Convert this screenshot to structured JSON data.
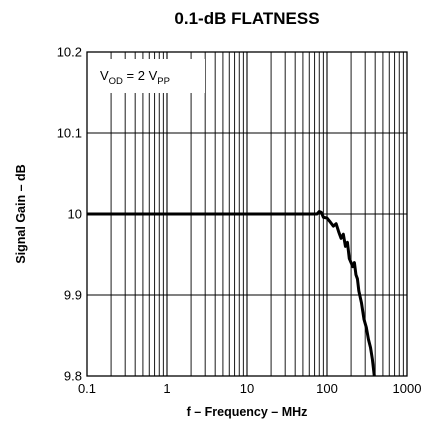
{
  "chart_data": {
    "type": "line",
    "title": "0.1-dB FLATNESS",
    "xlabel": "f – Frequency – MHz",
    "ylabel": "Signal Gain – dB",
    "x_scale": "log",
    "xlim": [
      0.1,
      1000
    ],
    "ylim": [
      9.8,
      10.2
    ],
    "x_ticks": [
      {
        "value": 0.1,
        "label": "0.1"
      },
      {
        "value": 1,
        "label": "1"
      },
      {
        "value": 10,
        "label": "10"
      },
      {
        "value": 100,
        "label": "100"
      },
      {
        "value": 1000,
        "label": "1000"
      }
    ],
    "y_ticks": [
      {
        "value": 9.8,
        "label": "9.8"
      },
      {
        "value": 9.9,
        "label": "9.9"
      },
      {
        "value": 10.0,
        "label": "10"
      },
      {
        "value": 10.1,
        "label": "10.1"
      },
      {
        "value": 10.2,
        "label": "10.2"
      }
    ],
    "grid": true,
    "annotation": {
      "main": "V",
      "sub1": "OD",
      "mid": " = 2 V",
      "sub2": "PP"
    },
    "series": [
      {
        "color": "#000000",
        "x": [
          0.1,
          1,
          10,
          40,
          60,
          75,
          80,
          85,
          90,
          100,
          110,
          120,
          130,
          140,
          150,
          160,
          170,
          180,
          190,
          200,
          210,
          220,
          230,
          240,
          250,
          270,
          290,
          310,
          330,
          350,
          370,
          390
        ],
        "y": [
          10.0,
          10.0,
          10.0,
          10.0,
          10.0,
          10.0,
          10.003,
          10.002,
          9.996,
          9.995,
          9.99,
          9.985,
          9.988,
          9.978,
          9.97,
          9.975,
          9.96,
          9.965,
          9.945,
          9.94,
          9.935,
          9.94,
          9.925,
          9.92,
          9.905,
          9.89,
          9.87,
          9.86,
          9.845,
          9.835,
          9.82,
          9.8
        ]
      }
    ]
  }
}
